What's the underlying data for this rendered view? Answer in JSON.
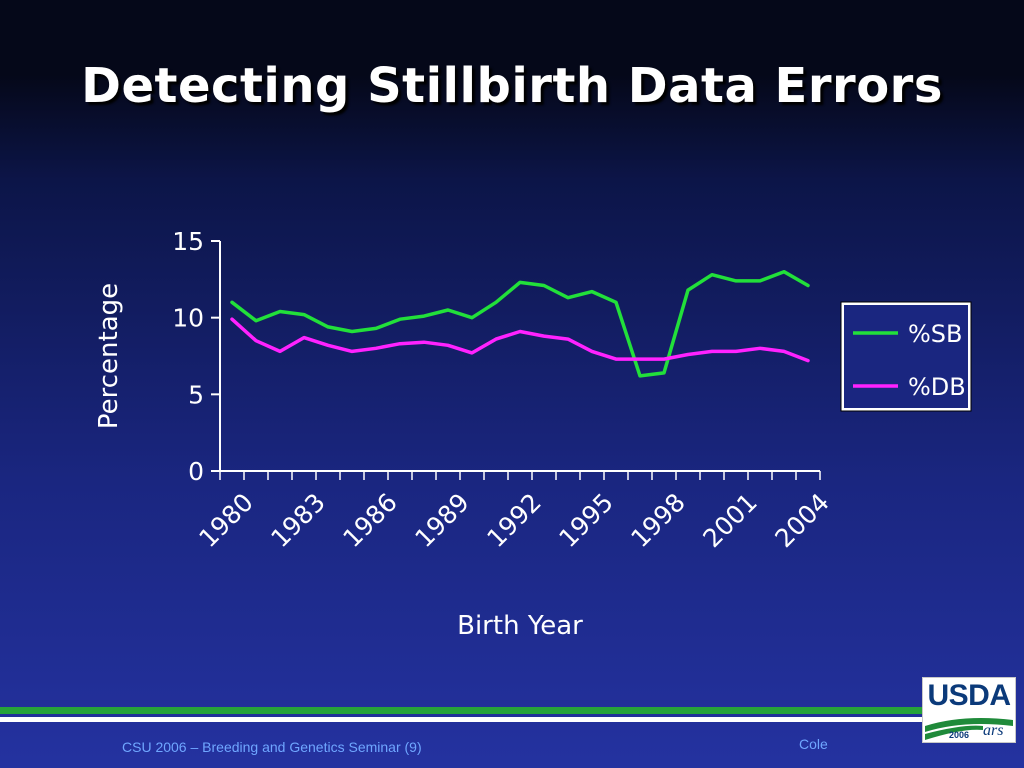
{
  "slide": {
    "title": "Detecting Stillbirth Data Errors",
    "footer_left": "CSU 2006 – Breeding and Genetics Seminar (9)",
    "footer_right": "Cole",
    "logo": {
      "text": "USDA",
      "year": "2006",
      "mark": "ars"
    }
  },
  "chart_data": {
    "type": "line",
    "xlabel": "Birth Year",
    "ylabel": "Percentage",
    "ylim": [
      0,
      15
    ],
    "yticks": [
      0,
      5,
      10,
      15
    ],
    "xtick_labels": [
      "1980",
      "1983",
      "1986",
      "1989",
      "1992",
      "1995",
      "1998",
      "2001",
      "2004"
    ],
    "x": [
      1980,
      1981,
      1982,
      1983,
      1984,
      1985,
      1986,
      1987,
      1988,
      1989,
      1990,
      1991,
      1992,
      1993,
      1994,
      1995,
      1996,
      1997,
      1998,
      1999,
      2000,
      2001,
      2002,
      2003,
      2004
    ],
    "grid": false,
    "legend_position": "right",
    "series": [
      {
        "name": "%SB",
        "color": "#22e03a",
        "values": [
          11.0,
          9.8,
          10.4,
          10.2,
          9.4,
          9.1,
          9.3,
          9.9,
          10.1,
          10.5,
          10.0,
          11.0,
          12.3,
          12.1,
          11.3,
          11.7,
          11.0,
          6.2,
          6.4,
          11.8,
          12.8,
          12.4,
          12.4,
          13.0,
          12.1
        ]
      },
      {
        "name": "%DB",
        "color": "#ff22ff",
        "values": [
          9.9,
          8.5,
          7.8,
          8.7,
          8.2,
          7.8,
          8.0,
          8.3,
          8.4,
          8.2,
          7.7,
          8.6,
          9.1,
          8.8,
          8.6,
          7.8,
          7.3,
          7.3,
          7.3,
          7.6,
          7.8,
          7.8,
          8.0,
          7.8,
          7.2
        ]
      }
    ]
  }
}
